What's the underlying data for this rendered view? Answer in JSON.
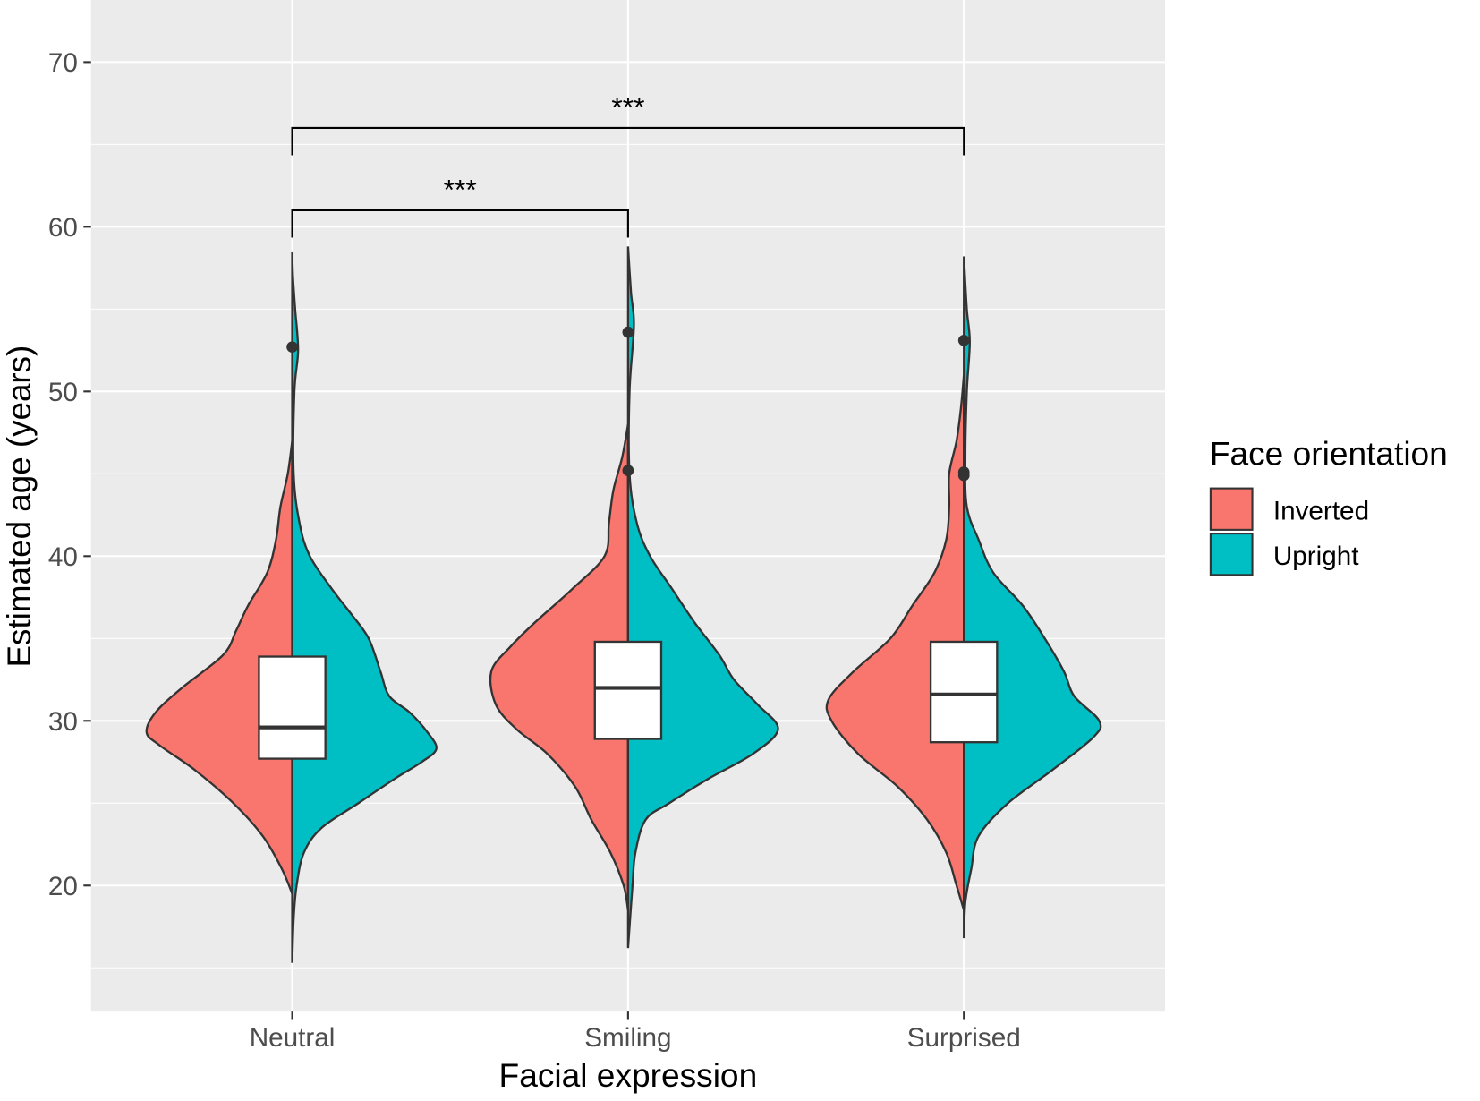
{
  "chart_data": {
    "type": "violin",
    "title": "",
    "xlabel": "Facial expression",
    "ylabel": "Estimated age (years)",
    "categories": [
      "Neutral",
      "Smiling",
      "Surprised"
    ],
    "yticks": [
      20,
      30,
      40,
      50,
      60,
      70
    ],
    "ylim": [
      12.3,
      73.8
    ],
    "grid": true,
    "legend": {
      "title": "Face orientation",
      "placement": "right",
      "entries": [
        {
          "name": "Inverted",
          "color": "#F8766D"
        },
        {
          "name": "Upright",
          "color": "#00BFC4"
        }
      ]
    },
    "violins": [
      {
        "category": "Neutral",
        "inverted": [
          [
            19.5,
            0
          ],
          [
            21,
            0.07
          ],
          [
            23,
            0.2
          ],
          [
            25,
            0.4
          ],
          [
            27,
            0.66
          ],
          [
            28.5,
            0.9
          ],
          [
            29.3,
            0.99
          ],
          [
            30.5,
            0.93
          ],
          [
            32,
            0.75
          ],
          [
            34,
            0.47
          ],
          [
            35.5,
            0.38
          ],
          [
            37,
            0.3
          ],
          [
            39,
            0.17
          ],
          [
            41,
            0.11
          ],
          [
            43,
            0.08
          ],
          [
            45,
            0.03
          ],
          [
            47,
            0
          ]
        ],
        "upright": [
          [
            15.3,
            0
          ],
          [
            18,
            0.01
          ],
          [
            20,
            0.03
          ],
          [
            22,
            0.08
          ],
          [
            23.5,
            0.2
          ],
          [
            25,
            0.45
          ],
          [
            26.5,
            0.7
          ],
          [
            27.5,
            0.88
          ],
          [
            28.3,
            0.98
          ],
          [
            29.3,
            0.92
          ],
          [
            30.5,
            0.8
          ],
          [
            31.5,
            0.66
          ],
          [
            33,
            0.6
          ],
          [
            35,
            0.52
          ],
          [
            36.5,
            0.4
          ],
          [
            38,
            0.27
          ],
          [
            40,
            0.12
          ],
          [
            42,
            0.05
          ],
          [
            45,
            0.01
          ],
          [
            50,
            0.015
          ],
          [
            52.5,
            0.04
          ],
          [
            55,
            0.02
          ],
          [
            57,
            0.005
          ],
          [
            58.5,
            0
          ]
        ],
        "box": {
          "q1": 27.7,
          "median": 29.6,
          "q3": 33.9
        },
        "outliers": [
          52.7
        ]
      },
      {
        "category": "Smiling",
        "inverted": [
          [
            18.5,
            0
          ],
          [
            20,
            0.03
          ],
          [
            22,
            0.12
          ],
          [
            24,
            0.25
          ],
          [
            26,
            0.36
          ],
          [
            28,
            0.55
          ],
          [
            29.5,
            0.76
          ],
          [
            31,
            0.9
          ],
          [
            33,
            0.93
          ],
          [
            34.5,
            0.8
          ],
          [
            36,
            0.63
          ],
          [
            38,
            0.38
          ],
          [
            40,
            0.16
          ],
          [
            42,
            0.13
          ],
          [
            44,
            0.1
          ],
          [
            46,
            0.04
          ],
          [
            48,
            0
          ]
        ],
        "upright": [
          [
            16.2,
            0
          ],
          [
            20,
            0.03
          ],
          [
            22,
            0.05
          ],
          [
            24,
            0.12
          ],
          [
            25,
            0.28
          ],
          [
            26.5,
            0.55
          ],
          [
            28,
            0.85
          ],
          [
            29.5,
            1.02
          ],
          [
            31,
            0.88
          ],
          [
            32.5,
            0.72
          ],
          [
            34,
            0.62
          ],
          [
            36,
            0.45
          ],
          [
            38,
            0.3
          ],
          [
            40,
            0.15
          ],
          [
            42,
            0.06
          ],
          [
            45,
            0.01
          ],
          [
            50,
            0.01
          ],
          [
            54,
            0.04
          ],
          [
            56,
            0.02
          ],
          [
            58.8,
            0
          ]
        ],
        "box": {
          "q1": 28.9,
          "median": 32.0,
          "q3": 34.8
        },
        "outliers": [
          53.6,
          45.2
        ]
      },
      {
        "category": "Surprised",
        "inverted": [
          [
            18.5,
            0
          ],
          [
            20,
            0.05
          ],
          [
            22,
            0.12
          ],
          [
            24,
            0.25
          ],
          [
            26,
            0.45
          ],
          [
            28,
            0.72
          ],
          [
            30,
            0.9
          ],
          [
            31.3,
            0.92
          ],
          [
            33,
            0.75
          ],
          [
            35,
            0.5
          ],
          [
            37,
            0.35
          ],
          [
            39,
            0.2
          ],
          [
            41,
            0.12
          ],
          [
            43,
            0.1
          ],
          [
            45,
            0.1
          ],
          [
            47,
            0.05
          ],
          [
            49,
            0.02
          ],
          [
            51,
            0
          ]
        ],
        "upright": [
          [
            16.8,
            0
          ],
          [
            19,
            0.01
          ],
          [
            21,
            0.05
          ],
          [
            23,
            0.1
          ],
          [
            25,
            0.3
          ],
          [
            27,
            0.6
          ],
          [
            29,
            0.88
          ],
          [
            30,
            0.92
          ],
          [
            31.5,
            0.75
          ],
          [
            33,
            0.68
          ],
          [
            35,
            0.55
          ],
          [
            37,
            0.4
          ],
          [
            39,
            0.2
          ],
          [
            41,
            0.1
          ],
          [
            43,
            0.02
          ],
          [
            46,
            0.01
          ],
          [
            50,
            0.02
          ],
          [
            53,
            0.04
          ],
          [
            55,
            0.02
          ],
          [
            58.2,
            0
          ]
        ],
        "box": {
          "q1": 28.7,
          "median": 31.6,
          "q3": 34.8
        },
        "outliers": [
          53.1,
          45.1,
          44.9
        ]
      }
    ],
    "annotations": [
      {
        "from": "Neutral",
        "to": "Smiling",
        "y": 61,
        "label": "***"
      },
      {
        "from": "Neutral",
        "to": "Surprised",
        "y": 66,
        "label": "***"
      }
    ]
  }
}
